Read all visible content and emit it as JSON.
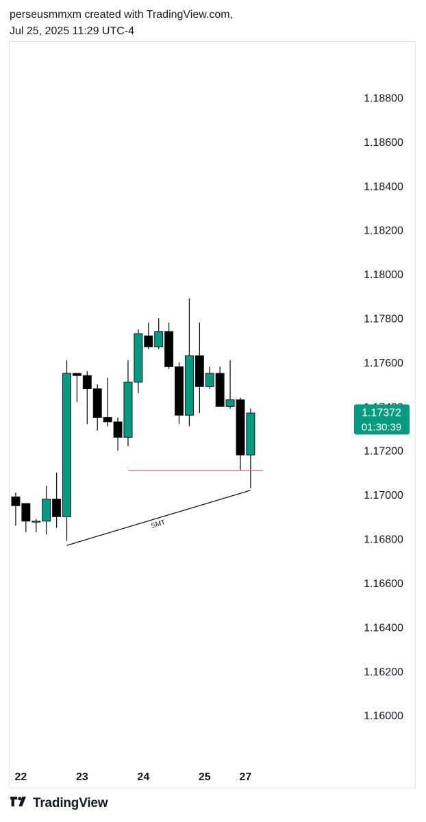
{
  "header": {
    "line1": "perseusmmxm created with TradingView.com,",
    "line2": "Jul 25, 2025 11:29 UTC-4"
  },
  "footer": {
    "brand": "TradingView",
    "logo_icon": "tradingview-logo-icon"
  },
  "colors": {
    "up": "#089981",
    "down": "#000000",
    "wick": "#131722",
    "level_line": "#e57373",
    "trend_line": "#131722",
    "price_badge": "#089981"
  },
  "chart_data": {
    "type": "candlestick",
    "y_ticks": [
      "1.18800",
      "1.18600",
      "1.18400",
      "1.18200",
      "1.18000",
      "1.17800",
      "1.17600",
      "1.17400",
      "1.17200",
      "1.17000",
      "1.16800",
      "1.16600",
      "1.16400",
      "1.16200",
      "1.16000"
    ],
    "x_ticks": [
      "22",
      "23",
      "24",
      "25",
      "27"
    ],
    "x_tick_positions": [
      0.5,
      6.5,
      12.5,
      18.5,
      22.5
    ],
    "ylim": [
      1.1578,
      1.1905
    ],
    "xlim": [
      -0.6,
      33
    ],
    "current_price": "1.17372",
    "countdown": "01:30:39",
    "candles": [
      {
        "o": 1.1699,
        "h": 1.1701,
        "l": 1.1686,
        "c": 1.1695
      },
      {
        "o": 1.1696,
        "h": 1.1696,
        "l": 1.1683,
        "c": 1.1688
      },
      {
        "o": 1.1688,
        "h": 1.1689,
        "l": 1.1683,
        "c": 1.1688
      },
      {
        "o": 1.1688,
        "h": 1.1704,
        "l": 1.1682,
        "c": 1.1698
      },
      {
        "o": 1.1698,
        "h": 1.171,
        "l": 1.1685,
        "c": 1.169
      },
      {
        "o": 1.169,
        "h": 1.1761,
        "l": 1.1679,
        "c": 1.1755
      },
      {
        "o": 1.1755,
        "h": 1.1755,
        "l": 1.1742,
        "c": 1.1754
      },
      {
        "o": 1.1754,
        "h": 1.1756,
        "l": 1.1732,
        "c": 1.1748
      },
      {
        "o": 1.1748,
        "h": 1.175,
        "l": 1.1729,
        "c": 1.1735
      },
      {
        "o": 1.1735,
        "h": 1.1753,
        "l": 1.1731,
        "c": 1.1733
      },
      {
        "o": 1.1733,
        "h": 1.1735,
        "l": 1.172,
        "c": 1.1726
      },
      {
        "o": 1.1726,
        "h": 1.1761,
        "l": 1.1722,
        "c": 1.1751
      },
      {
        "o": 1.1751,
        "h": 1.1775,
        "l": 1.1746,
        "c": 1.1773
      },
      {
        "o": 1.1772,
        "h": 1.1778,
        "l": 1.1766,
        "c": 1.1767
      },
      {
        "o": 1.1767,
        "h": 1.178,
        "l": 1.1766,
        "c": 1.1774
      },
      {
        "o": 1.1774,
        "h": 1.1778,
        "l": 1.1757,
        "c": 1.1758
      },
      {
        "o": 1.1758,
        "h": 1.176,
        "l": 1.1732,
        "c": 1.1736
      },
      {
        "o": 1.1736,
        "h": 1.1789,
        "l": 1.1731,
        "c": 1.1763
      },
      {
        "o": 1.1763,
        "h": 1.1778,
        "l": 1.1737,
        "c": 1.1749
      },
      {
        "o": 1.1749,
        "h": 1.1758,
        "l": 1.1748,
        "c": 1.1755
      },
      {
        "o": 1.1755,
        "h": 1.1758,
        "l": 1.174,
        "c": 1.174
      },
      {
        "o": 1.174,
        "h": 1.1761,
        "l": 1.1739,
        "c": 1.1743
      },
      {
        "o": 1.1743,
        "h": 1.1744,
        "l": 1.1711,
        "c": 1.1718
      },
      {
        "o": 1.1718,
        "h": 1.1739,
        "l": 1.1703,
        "c": 1.1737
      }
    ],
    "level_line": {
      "price": 1.1711,
      "from_index": 11,
      "to_index": 24
    },
    "trendline": {
      "from_index": 5,
      "from_price": 1.1677,
      "to_index": 23,
      "to_price": 1.1702,
      "label": "SMT"
    }
  }
}
